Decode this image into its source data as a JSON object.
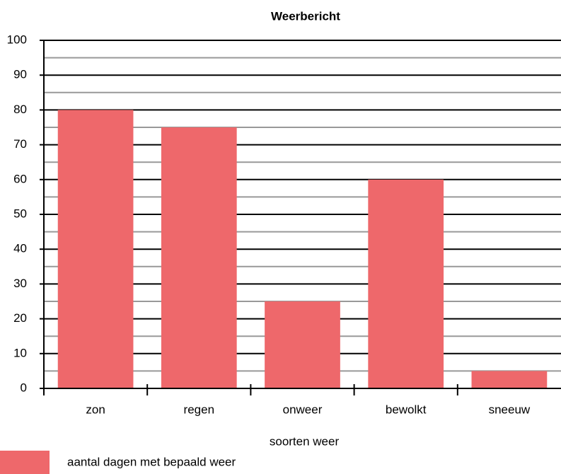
{
  "chart_data": {
    "type": "bar",
    "title": "Weerbericht",
    "categories": [
      "zon",
      "regen",
      "onweer",
      "bewolkt",
      "sneeuw"
    ],
    "series": [
      {
        "name": "aantal dagen met bepaald weer",
        "color": "#ee686b",
        "values": [
          80,
          75,
          25,
          60,
          5
        ]
      }
    ],
    "xlabel": "soorten weer",
    "ylim": [
      0,
      100
    ],
    "yticks": [
      0,
      10,
      20,
      30,
      40,
      50,
      60,
      70,
      80,
      90,
      100
    ],
    "minor_yticks": [
      5,
      15,
      25,
      35,
      45,
      55,
      65,
      75,
      85,
      95
    ],
    "grid": true
  }
}
